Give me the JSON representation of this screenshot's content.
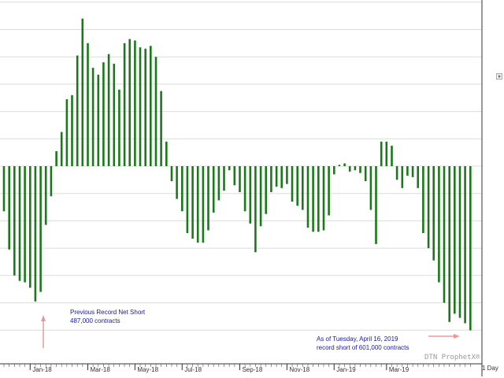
{
  "chart_data": {
    "type": "bar",
    "title": "",
    "xlabel": "",
    "ylabel": "",
    "ylim": [
      -620000,
      600000
    ],
    "grid": true,
    "tick_labels": [
      "Jan-18",
      "Mar-18",
      "May-18",
      "Jul-18",
      "Sep-18",
      "Nov-18",
      "Jan-19",
      "Mar-19"
    ],
    "tick_bar_index": [
      5,
      16,
      25,
      34,
      45,
      54,
      63,
      73
    ],
    "bar_color": "#1a7a1a",
    "values": [
      -165000,
      -305000,
      -400000,
      -420000,
      -425000,
      -445000,
      -495000,
      -460000,
      -215000,
      -110000,
      55000,
      125000,
      245000,
      260000,
      405000,
      540000,
      450000,
      360000,
      335000,
      380000,
      410000,
      375000,
      280000,
      450000,
      465000,
      460000,
      435000,
      430000,
      440000,
      400000,
      275000,
      90000,
      -55000,
      -120000,
      -165000,
      -245000,
      -265000,
      -280000,
      -280000,
      -235000,
      -170000,
      -125000,
      -90000,
      -15000,
      -70000,
      -95000,
      -165000,
      -210000,
      -315000,
      -220000,
      -175000,
      -95000,
      -75000,
      -80000,
      -65000,
      -130000,
      -145000,
      -160000,
      -225000,
      -240000,
      -240000,
      -235000,
      -180000,
      -30000,
      5000,
      10000,
      -20000,
      -15000,
      -25000,
      -55000,
      -160000,
      -285000,
      90000,
      90000,
      75000,
      -50000,
      -80000,
      -35000,
      -40000,
      -80000,
      -245000,
      -300000,
      -345000,
      -425000,
      -500000,
      -570000,
      -540000,
      -555000,
      -575000,
      -601000
    ],
    "annotations": [
      {
        "lines": [
          "Previous Record Net Short",
          "487,000 contracts"
        ],
        "arrow": "up"
      },
      {
        "lines": [
          "As of Tuesday, April 16, 2019",
          "record short of 601,000 contracts"
        ],
        "arrow": "right"
      }
    ]
  },
  "watermark": "DTN ProphetX®",
  "period_label": "1 Day"
}
